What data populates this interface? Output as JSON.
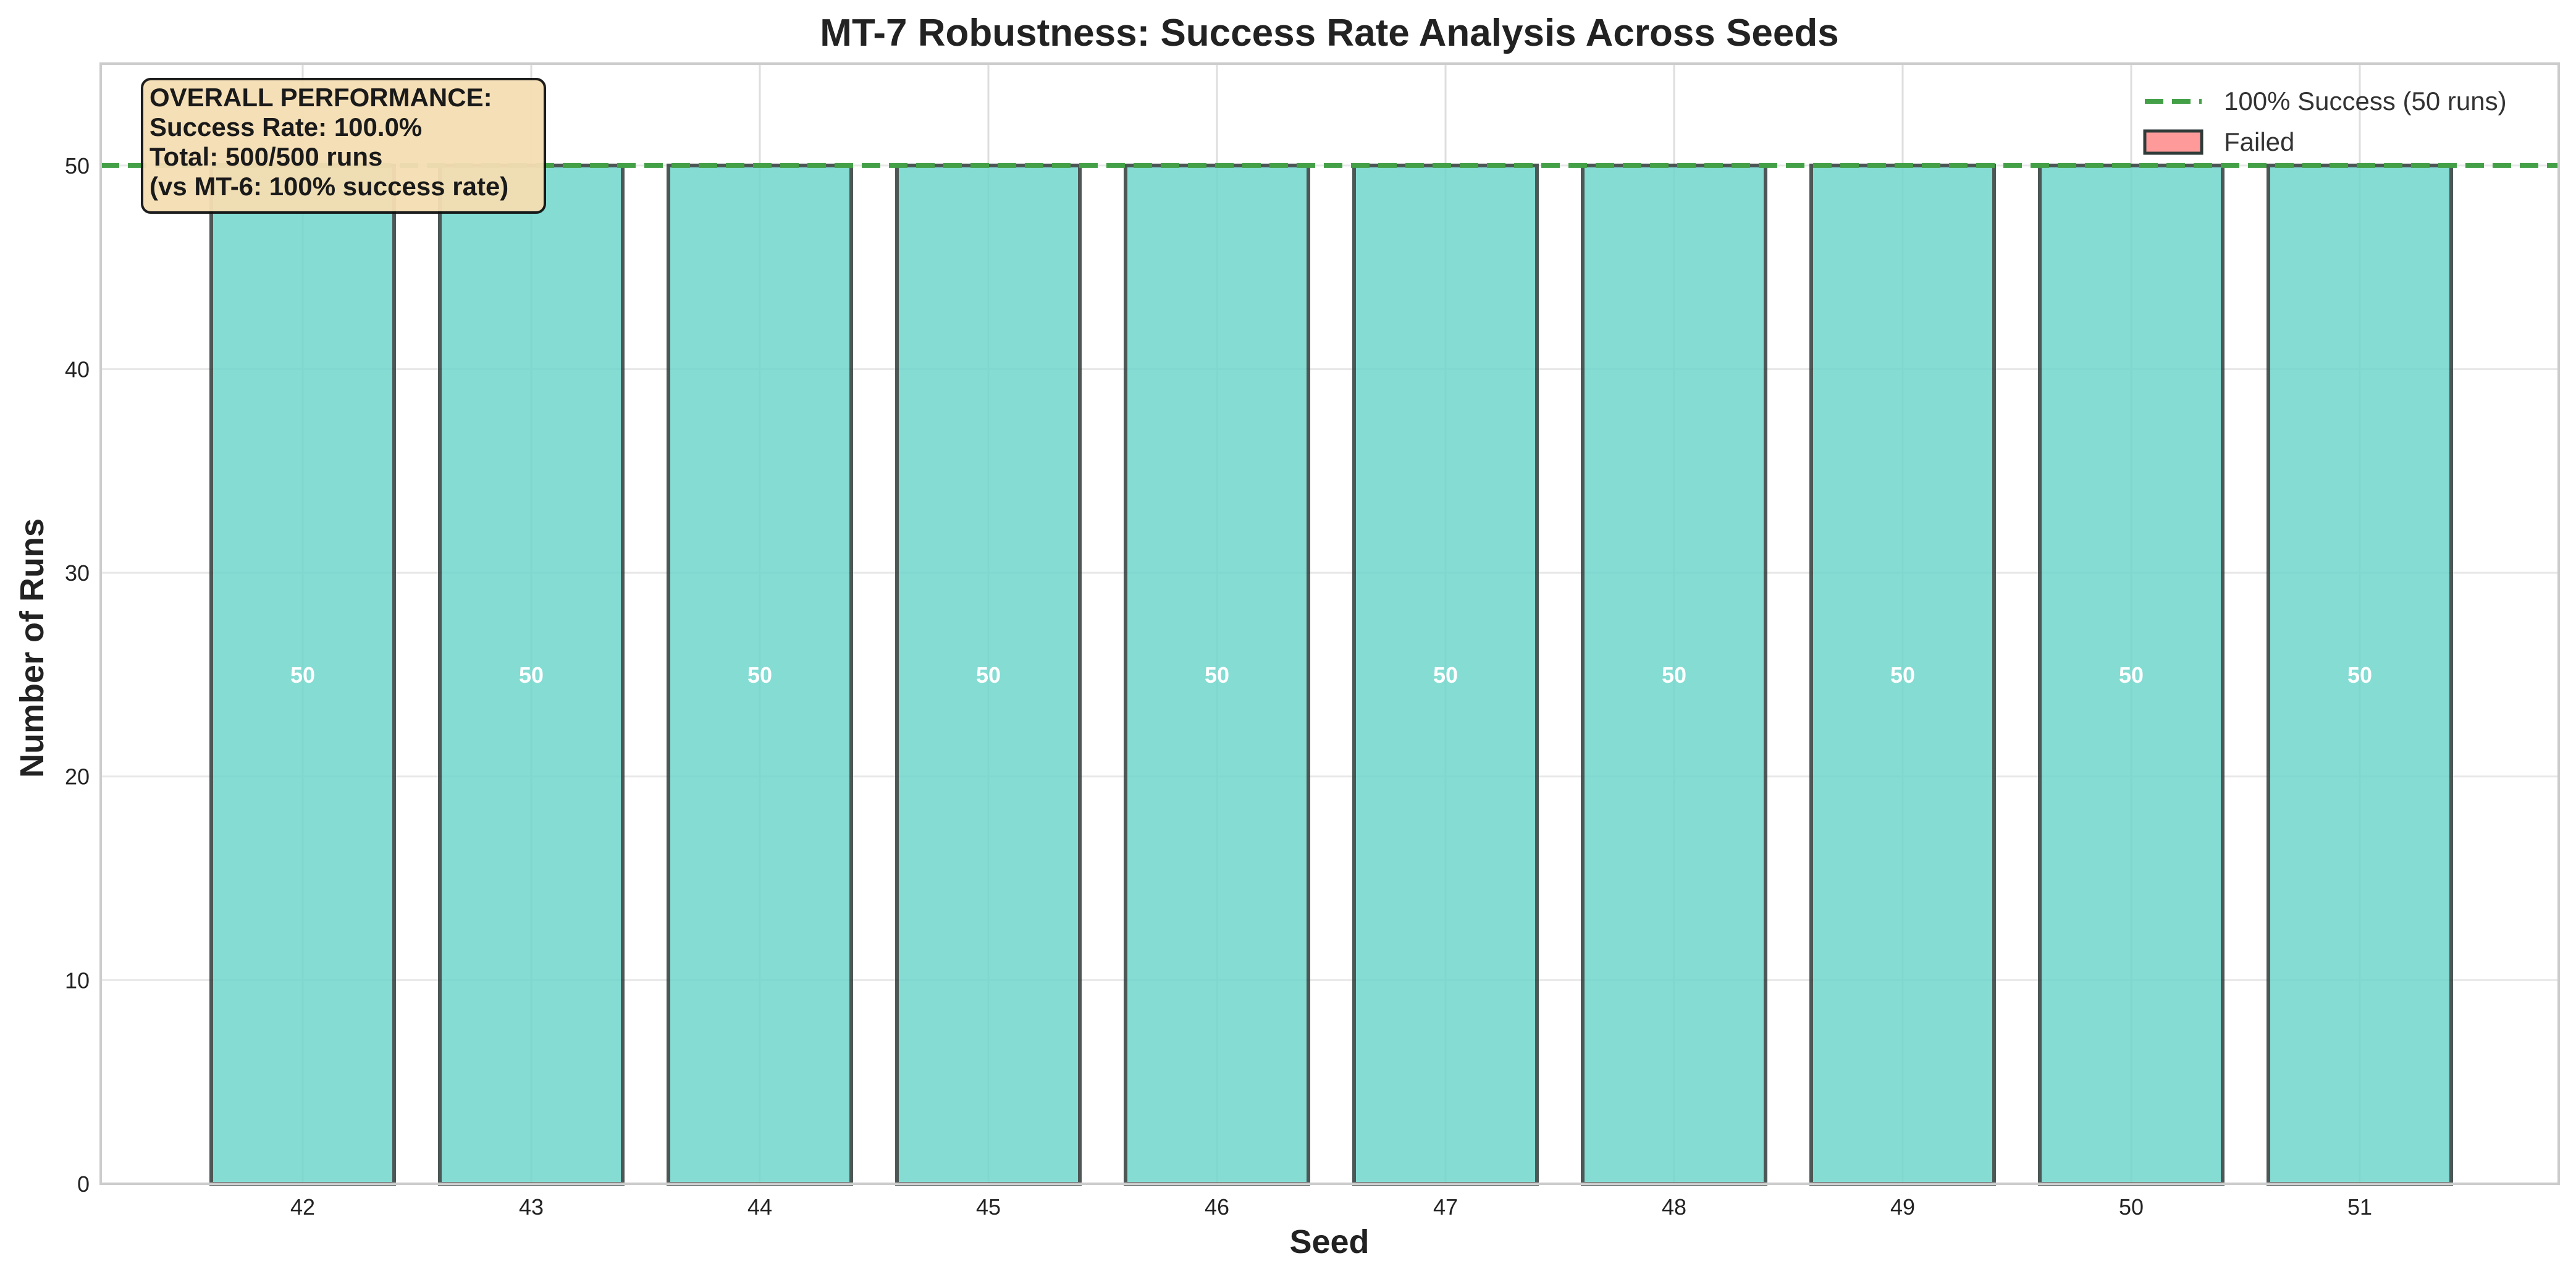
{
  "chart_data": {
    "type": "bar",
    "title": "MT-7 Robustness: Success Rate Analysis Across Seeds",
    "xlabel": "Seed",
    "ylabel": "Number of Runs",
    "categories": [
      "42",
      "43",
      "44",
      "45",
      "46",
      "47",
      "48",
      "49",
      "50",
      "51"
    ],
    "series": [
      {
        "values": [
          50,
          50,
          50,
          50,
          50,
          50,
          50,
          50,
          50,
          50
        ],
        "color": "#6fd6cc"
      },
      {
        "name": "Failed",
        "values": [
          0,
          0,
          0,
          0,
          0,
          0,
          0,
          0,
          0,
          0
        ],
        "color": "#ff9a9a"
      }
    ],
    "data_labels": [
      "50",
      "50",
      "50",
      "50",
      "50",
      "50",
      "50",
      "50",
      "50",
      "50"
    ],
    "reference_line": {
      "label": "100% Success (50 runs)",
      "value": 50,
      "color": "#43a047"
    },
    "ylim": [
      0,
      55
    ],
    "yticks": [
      0,
      10,
      20,
      30,
      40,
      50
    ],
    "grid": true,
    "legend_position": "top-right",
    "annotation": {
      "lines": [
        "OVERALL PERFORMANCE:",
        "Success Rate: 100.0%",
        "Total: 500/500 runs",
        "(vs MT-6: 100% success rate)"
      ],
      "background": "#f5deb3"
    }
  }
}
